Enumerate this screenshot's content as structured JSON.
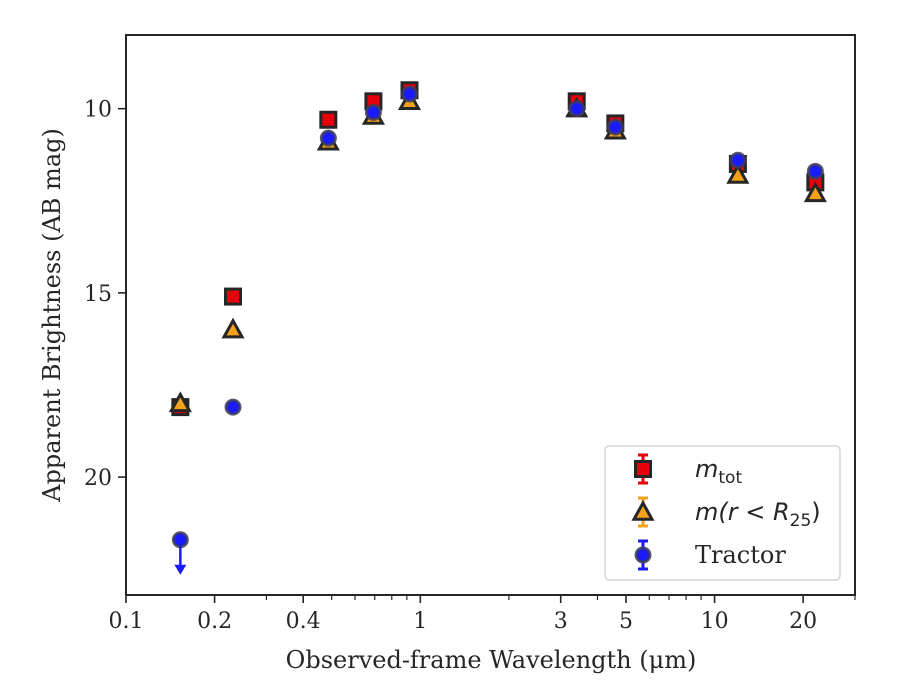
{
  "chart_data": {
    "type": "scatter",
    "title": "",
    "xlabel": "Observed-frame Wavelength (μm)",
    "ylabel": "Apparent Brightness (AB mag)",
    "xscale": "log",
    "yaxis_inverted": true,
    "xlim": [
      0.1,
      30
    ],
    "ylim": [
      23.2,
      8.0
    ],
    "xticks": [
      {
        "value": 0.1,
        "label": "0.1"
      },
      {
        "value": 0.2,
        "label": "0.2"
      },
      {
        "value": 0.4,
        "label": "0.4"
      },
      {
        "value": 1,
        "label": "1"
      },
      {
        "value": 3,
        "label": "3"
      },
      {
        "value": 5,
        "label": "5"
      },
      {
        "value": 10,
        "label": "10"
      },
      {
        "value": 20,
        "label": "20"
      }
    ],
    "yticks": [
      {
        "value": 10,
        "label": "10"
      },
      {
        "value": 15,
        "label": "15"
      },
      {
        "value": 20,
        "label": "20"
      }
    ],
    "grid": false,
    "legend_position": "lower-right",
    "series": [
      {
        "name": "m_tot",
        "label_main": "m",
        "label_sub": "tot",
        "marker": "square",
        "color": "#e8000b",
        "edge": "#262626",
        "x": [
          0.153,
          0.231,
          0.487,
          0.693,
          0.919,
          3.4,
          4.6,
          12.0,
          22.0
        ],
        "y": [
          18.1,
          15.1,
          10.3,
          9.8,
          9.5,
          9.8,
          10.4,
          11.5,
          12.0
        ]
      },
      {
        "name": "m(r < R25)",
        "label_main": "m(r < R",
        "label_sub": "25",
        "label_end": ")",
        "marker": "triangle",
        "color": "#f4a11c",
        "edge": "#262626",
        "x": [
          0.153,
          0.231,
          0.487,
          0.693,
          0.919,
          3.4,
          4.6,
          12.0,
          22.0
        ],
        "y": [
          18.0,
          16.0,
          10.9,
          10.2,
          9.8,
          10.0,
          10.6,
          11.8,
          12.3
        ]
      },
      {
        "name": "Tractor",
        "marker": "circle",
        "color": "#1a1aff",
        "edge": "#3d3d5c",
        "x": [
          0.153,
          0.231,
          0.487,
          0.693,
          0.919,
          3.4,
          4.6,
          12.0,
          22.0
        ],
        "y": [
          21.7,
          18.1,
          10.8,
          10.1,
          9.6,
          10.0,
          10.5,
          11.4,
          11.7
        ],
        "upper_limit_index": 0
      }
    ],
    "legend": [
      {
        "series": 0,
        "text": "m",
        "sub": "tot",
        "tail": ""
      },
      {
        "series": 1,
        "text": "m(r < R",
        "sub": "25",
        "tail": ")"
      },
      {
        "series": 2,
        "text": "Tractor",
        "sub": "",
        "tail": ""
      }
    ]
  }
}
